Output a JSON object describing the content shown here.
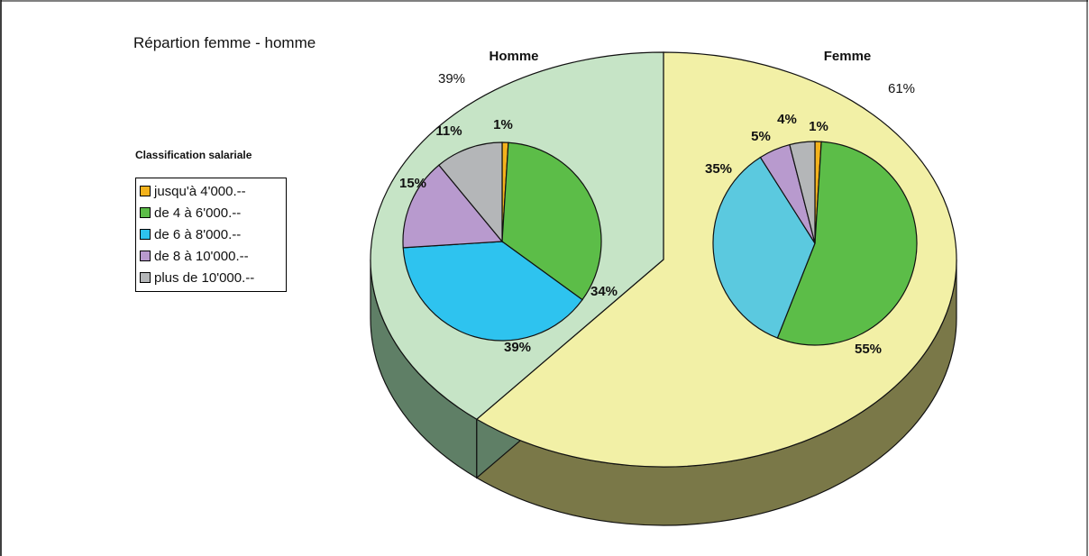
{
  "chart_data": {
    "type": "pie",
    "title": "Répartion femme - homme",
    "main_pie": {
      "slices": [
        {
          "label": "Femme",
          "value": 61,
          "value_label": "61%",
          "color": "#f2f0a6",
          "side_color": "#7a7848"
        },
        {
          "label": "Homme",
          "value": 39,
          "value_label": "39%",
          "color": "#c6e4c6",
          "side_color": "#5f7f66"
        }
      ]
    },
    "legend": {
      "title": "Classification salariale",
      "placement": "left",
      "items": [
        {
          "label": "jusqu'à 4'000.--",
          "color": "#f3b21c"
        },
        {
          "label": "de 4 à 6'000.--",
          "color": "#5cbd48"
        },
        {
          "label": "de 6 à 8'000.--",
          "color": "#2ec3ef"
        },
        {
          "label": "de 8 à 10'000.--",
          "color": "#b89ace"
        },
        {
          "label": "plus de 10'000.--",
          "color": "#b4b6b8"
        }
      ]
    },
    "sub_pies": [
      {
        "title": "Homme",
        "categories": [
          "jusqu'à 4'000.--",
          "de 4 à 6'000.--",
          "de 6 à 8'000.--",
          "de 8 à 10'000.--",
          "plus de 10'000.--"
        ],
        "values": [
          1,
          34,
          39,
          15,
          11
        ],
        "value_labels": [
          "1%",
          "34%",
          "39%",
          "15%",
          "11%"
        ],
        "colors": [
          "#f3b21c",
          "#5cbd48",
          "#2ec3ef",
          "#b89ace",
          "#b4b6b8"
        ]
      },
      {
        "title": "Femme",
        "categories": [
          "jusqu'à 4'000.--",
          "de 4 à 6'000.--",
          "de 6 à 8'000.--",
          "de 8 à 10'000.--",
          "plus de 10'000.--"
        ],
        "values": [
          1,
          55,
          35,
          5,
          4
        ],
        "value_labels": [
          "1%",
          "55%",
          "35%",
          "5%",
          "4%"
        ],
        "colors": [
          "#f3b21c",
          "#5cbd48",
          "#5bc9df",
          "#b89ace",
          "#b4b6b8"
        ]
      }
    ]
  }
}
